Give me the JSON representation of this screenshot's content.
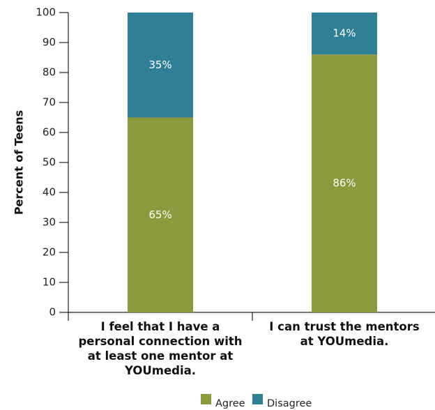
{
  "chart_data": {
    "type": "stacked_bar",
    "categories": [
      "I feel that I have a personal connection with at least one mentor at YOUmedia.",
      "I can trust the mentors at YOUmedia."
    ],
    "series": [
      {
        "name": "Agree",
        "color": "#8a9b3e",
        "values": [
          65,
          86
        ],
        "value_labels": [
          "65%",
          "86%"
        ]
      },
      {
        "name": "Disagree",
        "color": "#2f7f97",
        "values": [
          35,
          14
        ],
        "value_labels": [
          "35%",
          "14%"
        ]
      }
    ],
    "y_label": "Percent of Teens",
    "ylim": [
      0,
      100
    ],
    "yticks": [
      0,
      10,
      20,
      30,
      40,
      50,
      60,
      70,
      80,
      90,
      100
    ],
    "legend": "bottom"
  }
}
